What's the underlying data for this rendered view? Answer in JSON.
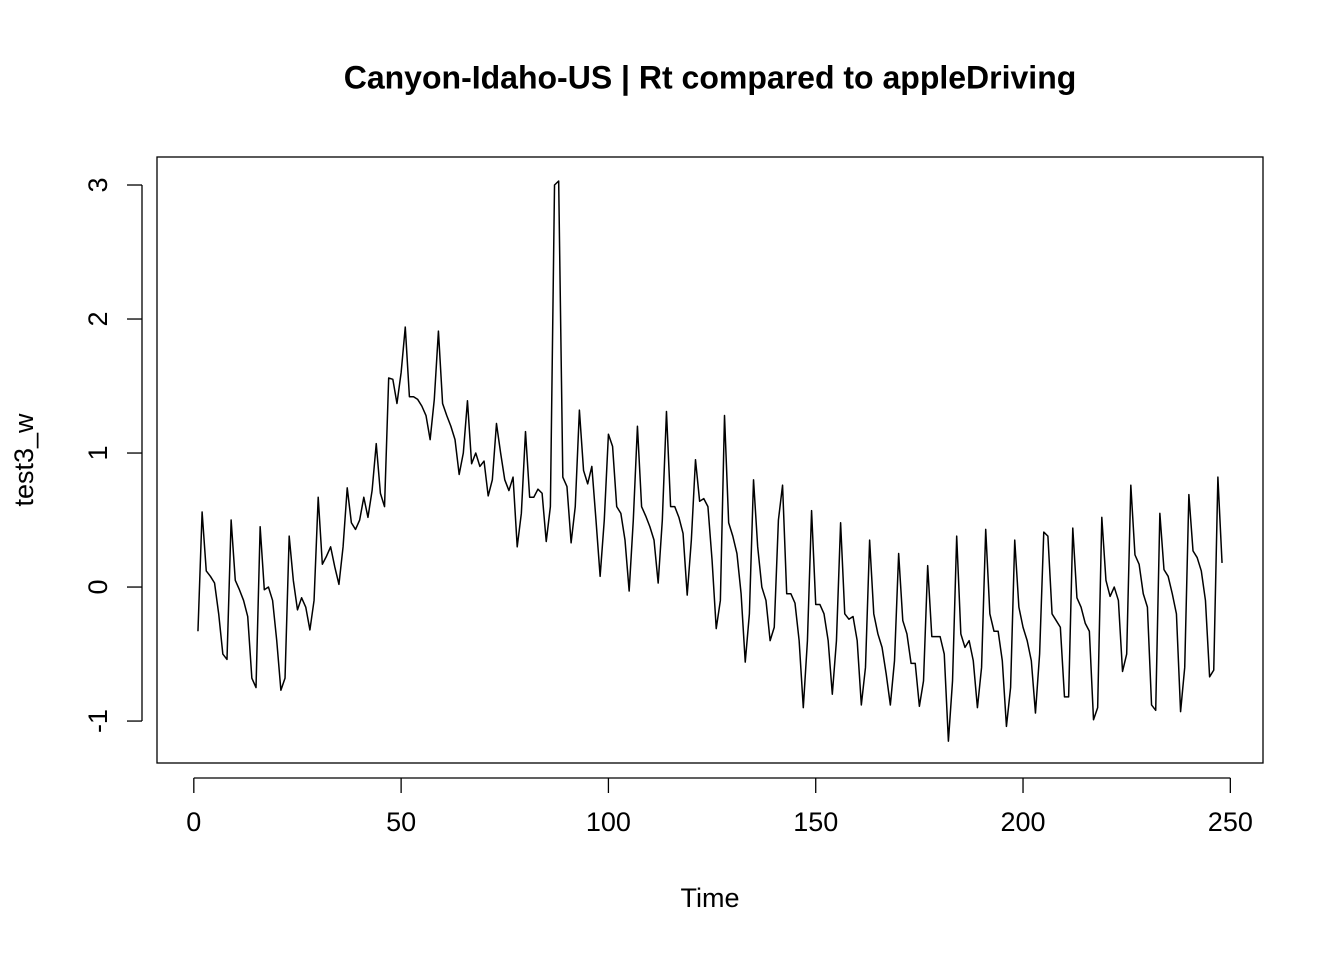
{
  "chart_data": {
    "type": "line",
    "title": "Canyon-Idaho-US | Rt compared to appleDriving",
    "x_label": "Time",
    "y_label": "test3_w",
    "color": "#000000",
    "xlim": [
      -8.88,
      257.88
    ],
    "ylim": [
      -1.313,
      3.209
    ],
    "xticks": [
      0,
      50,
      100,
      150,
      200,
      250
    ],
    "yticks": [
      -1,
      0,
      1,
      2,
      3
    ],
    "x": [
      1,
      2,
      3,
      4,
      5,
      6,
      7,
      8,
      9,
      10,
      11,
      12,
      13,
      14,
      15,
      16,
      17,
      18,
      19,
      20,
      21,
      22,
      23,
      24,
      25,
      26,
      27,
      28,
      29,
      30,
      31,
      32,
      33,
      34,
      35,
      36,
      37,
      38,
      39,
      40,
      41,
      42,
      43,
      44,
      45,
      46,
      47,
      48,
      49,
      50,
      51,
      52,
      53,
      54,
      55,
      56,
      57,
      58,
      59,
      60,
      61,
      62,
      63,
      64,
      65,
      66,
      67,
      68,
      69,
      70,
      71,
      72,
      73,
      74,
      75,
      76,
      77,
      78,
      79,
      80,
      81,
      82,
      83,
      84,
      85,
      86,
      87,
      88,
      89,
      90,
      91,
      92,
      93,
      94,
      95,
      96,
      97,
      98,
      99,
      100,
      101,
      102,
      103,
      104,
      105,
      106,
      107,
      108,
      109,
      110,
      111,
      112,
      113,
      114,
      115,
      116,
      117,
      118,
      119,
      120,
      121,
      122,
      123,
      124,
      125,
      126,
      127,
      128,
      129,
      130,
      131,
      132,
      133,
      134,
      135,
      136,
      137,
      138,
      139,
      140,
      141,
      142,
      143,
      144,
      145,
      146,
      147,
      148,
      149,
      150,
      151,
      152,
      153,
      154,
      155,
      156,
      157,
      158,
      159,
      160,
      161,
      162,
      163,
      164,
      165,
      166,
      167,
      168,
      169,
      170,
      171,
      172,
      173,
      174,
      175,
      176,
      177,
      178,
      179,
      180,
      181,
      182,
      183,
      184,
      185,
      186,
      187,
      188,
      189,
      190,
      191,
      192,
      193,
      194,
      195,
      196,
      197,
      198,
      199,
      200,
      201,
      202,
      203,
      204,
      205,
      206,
      207,
      208,
      209,
      210,
      211,
      212,
      213,
      214,
      215,
      216,
      217,
      218,
      219,
      220,
      221,
      222,
      223,
      224,
      225,
      226,
      227,
      228,
      229,
      230,
      231,
      232,
      233,
      234,
      235,
      236,
      237,
      238,
      239,
      240,
      241,
      242,
      243,
      244,
      245,
      246,
      247,
      248
    ],
    "values": [
      -0.33,
      0.56,
      0.12,
      0.08,
      0.03,
      -0.2,
      -0.5,
      -0.54,
      0.5,
      0.05,
      -0.02,
      -0.1,
      -0.22,
      -0.68,
      -0.75,
      0.45,
      -0.02,
      0.0,
      -0.1,
      -0.4,
      -0.77,
      -0.68,
      0.38,
      0.05,
      -0.17,
      -0.08,
      -0.15,
      -0.32,
      -0.1,
      0.67,
      0.17,
      0.23,
      0.3,
      0.15,
      0.02,
      0.3,
      0.74,
      0.48,
      0.43,
      0.5,
      0.67,
      0.52,
      0.72,
      1.07,
      0.7,
      0.6,
      1.56,
      1.55,
      1.37,
      1.6,
      1.94,
      1.42,
      1.42,
      1.4,
      1.35,
      1.28,
      1.1,
      1.4,
      1.91,
      1.37,
      1.28,
      1.2,
      1.1,
      0.84,
      1.0,
      1.39,
      0.92,
      1.0,
      0.9,
      0.94,
      0.68,
      0.8,
      1.22,
      1.0,
      0.8,
      0.72,
      0.82,
      0.3,
      0.55,
      1.16,
      0.67,
      0.67,
      0.73,
      0.7,
      0.34,
      0.6,
      3.0,
      3.03,
      0.82,
      0.75,
      0.33,
      0.6,
      1.32,
      0.87,
      0.77,
      0.9,
      0.5,
      0.08,
      0.5,
      1.14,
      1.05,
      0.6,
      0.55,
      0.35,
      -0.03,
      0.5,
      1.2,
      0.6,
      0.53,
      0.45,
      0.35,
      0.03,
      0.5,
      1.31,
      0.6,
      0.6,
      0.52,
      0.4,
      -0.06,
      0.35,
      0.95,
      0.64,
      0.66,
      0.6,
      0.2,
      -0.31,
      -0.1,
      1.28,
      0.48,
      0.38,
      0.25,
      -0.05,
      -0.56,
      -0.2,
      0.8,
      0.3,
      0.0,
      -0.1,
      -0.4,
      -0.3,
      0.5,
      0.76,
      -0.05,
      -0.05,
      -0.12,
      -0.4,
      -0.9,
      -0.4,
      0.57,
      -0.13,
      -0.13,
      -0.2,
      -0.4,
      -0.8,
      -0.4,
      0.48,
      -0.2,
      -0.24,
      -0.22,
      -0.4,
      -0.88,
      -0.6,
      0.35,
      -0.2,
      -0.35,
      -0.45,
      -0.65,
      -0.88,
      -0.55,
      0.25,
      -0.25,
      -0.35,
      -0.57,
      -0.57,
      -0.89,
      -0.7,
      0.16,
      -0.37,
      -0.37,
      -0.37,
      -0.5,
      -1.15,
      -0.7,
      0.38,
      -0.35,
      -0.45,
      -0.4,
      -0.55,
      -0.9,
      -0.6,
      0.43,
      -0.2,
      -0.33,
      -0.33,
      -0.55,
      -1.04,
      -0.75,
      0.35,
      -0.15,
      -0.3,
      -0.4,
      -0.55,
      -0.94,
      -0.5,
      0.41,
      0.38,
      -0.2,
      -0.25,
      -0.3,
      -0.82,
      -0.82,
      0.44,
      -0.08,
      -0.15,
      -0.27,
      -0.33,
      -0.99,
      -0.9,
      0.52,
      0.05,
      -0.07,
      0.0,
      -0.1,
      -0.63,
      -0.5,
      0.76,
      0.24,
      0.17,
      -0.05,
      -0.15,
      -0.88,
      -0.92,
      0.55,
      0.13,
      0.08,
      -0.05,
      -0.2,
      -0.93,
      -0.6,
      0.69,
      0.27,
      0.22,
      0.12,
      -0.1,
      -0.67,
      -0.62,
      0.82,
      0.18
    ]
  }
}
